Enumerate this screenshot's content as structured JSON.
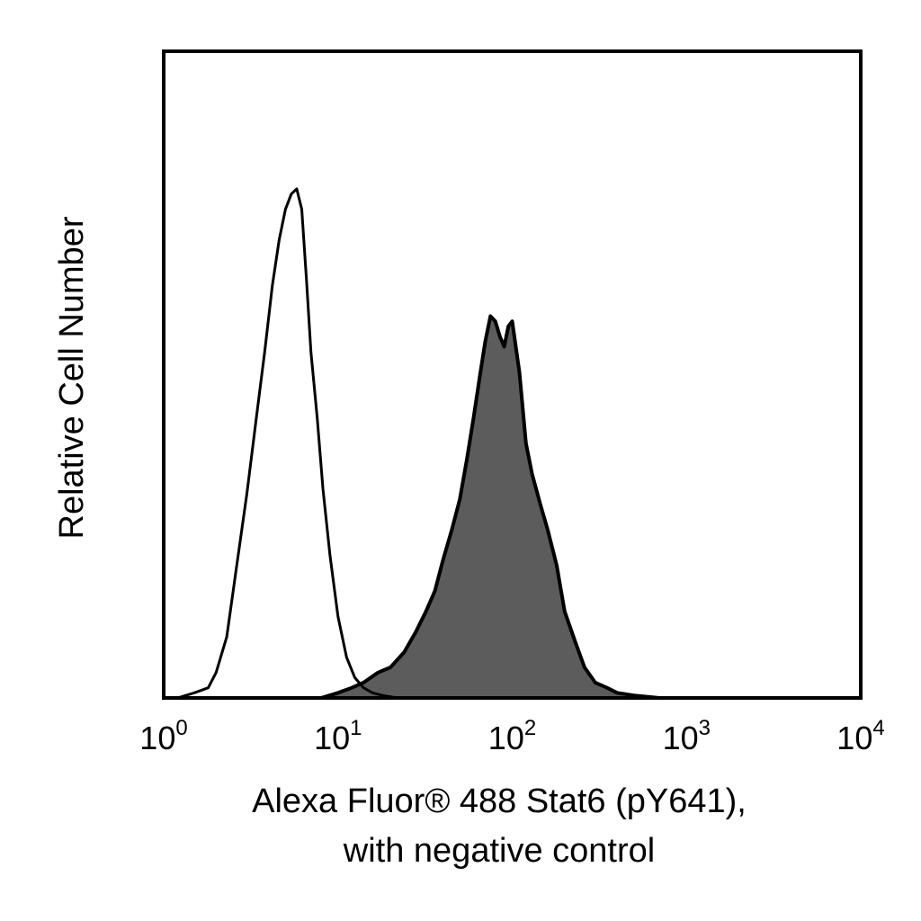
{
  "chart_data": {
    "type": "area",
    "title": "",
    "xlabel_lines": [
      "Alexa Fluor® 488 Stat6 (pY641),",
      "with negative control"
    ],
    "ylabel": "Relative Cell Number",
    "x_scale": "log",
    "xlim": [
      1,
      10000
    ],
    "ylim": [
      0,
      1
    ],
    "grid": false,
    "x_ticks": [
      {
        "base": "10",
        "exp": "0",
        "value": 1
      },
      {
        "base": "10",
        "exp": "1",
        "value": 10
      },
      {
        "base": "10",
        "exp": "2",
        "value": 100
      },
      {
        "base": "10",
        "exp": "3",
        "value": 1000
      },
      {
        "base": "10",
        "exp": "4",
        "value": 10000
      }
    ],
    "series": [
      {
        "role": "negative control",
        "style": "outline",
        "color": "#000000",
        "x": [
          1.0,
          1.2,
          1.5,
          1.8,
          2.0,
          2.3,
          2.6,
          3.0,
          3.4,
          3.8,
          4.2,
          4.6,
          5.0,
          5.4,
          5.8,
          6.2,
          6.6,
          7.0,
          7.6,
          8.2,
          9.0,
          10.0,
          11.2,
          12.5,
          14.0,
          15.8,
          18.0,
          22.0,
          30.0,
          50.0,
          100.0,
          200.0
        ],
        "y": [
          0.0,
          0.0,
          0.01,
          0.02,
          0.05,
          0.12,
          0.25,
          0.4,
          0.55,
          0.68,
          0.81,
          0.9,
          0.96,
          0.99,
          1.0,
          0.96,
          0.82,
          0.68,
          0.55,
          0.41,
          0.28,
          0.16,
          0.08,
          0.04,
          0.02,
          0.01,
          0.005,
          0.0,
          0.0,
          0.0,
          0.0,
          0.0
        ]
      },
      {
        "role": "Stat6 (pY641)",
        "style": "filled",
        "color": "#5c5c5c",
        "x": [
          8.0,
          10.0,
          12.0,
          14.0,
          17.0,
          20.0,
          24.0,
          28.0,
          32.0,
          36.0,
          40.0,
          45.0,
          50.0,
          55.0,
          60.0,
          65.0,
          70.0,
          75.0,
          80.0,
          85.0,
          90.0,
          95.0,
          100.0,
          110.0,
          120.0,
          130.0,
          145.0,
          160.0,
          180.0,
          200.0,
          230.0,
          260.0,
          300.0,
          350.0,
          400.0,
          500.0,
          700.0,
          1000.0
        ],
        "y": [
          0.0,
          0.01,
          0.02,
          0.03,
          0.05,
          0.06,
          0.09,
          0.13,
          0.17,
          0.21,
          0.27,
          0.33,
          0.39,
          0.47,
          0.55,
          0.63,
          0.7,
          0.75,
          0.74,
          0.71,
          0.69,
          0.73,
          0.74,
          0.64,
          0.5,
          0.44,
          0.38,
          0.33,
          0.26,
          0.17,
          0.11,
          0.06,
          0.03,
          0.02,
          0.01,
          0.005,
          0.0,
          0.0
        ]
      }
    ]
  }
}
